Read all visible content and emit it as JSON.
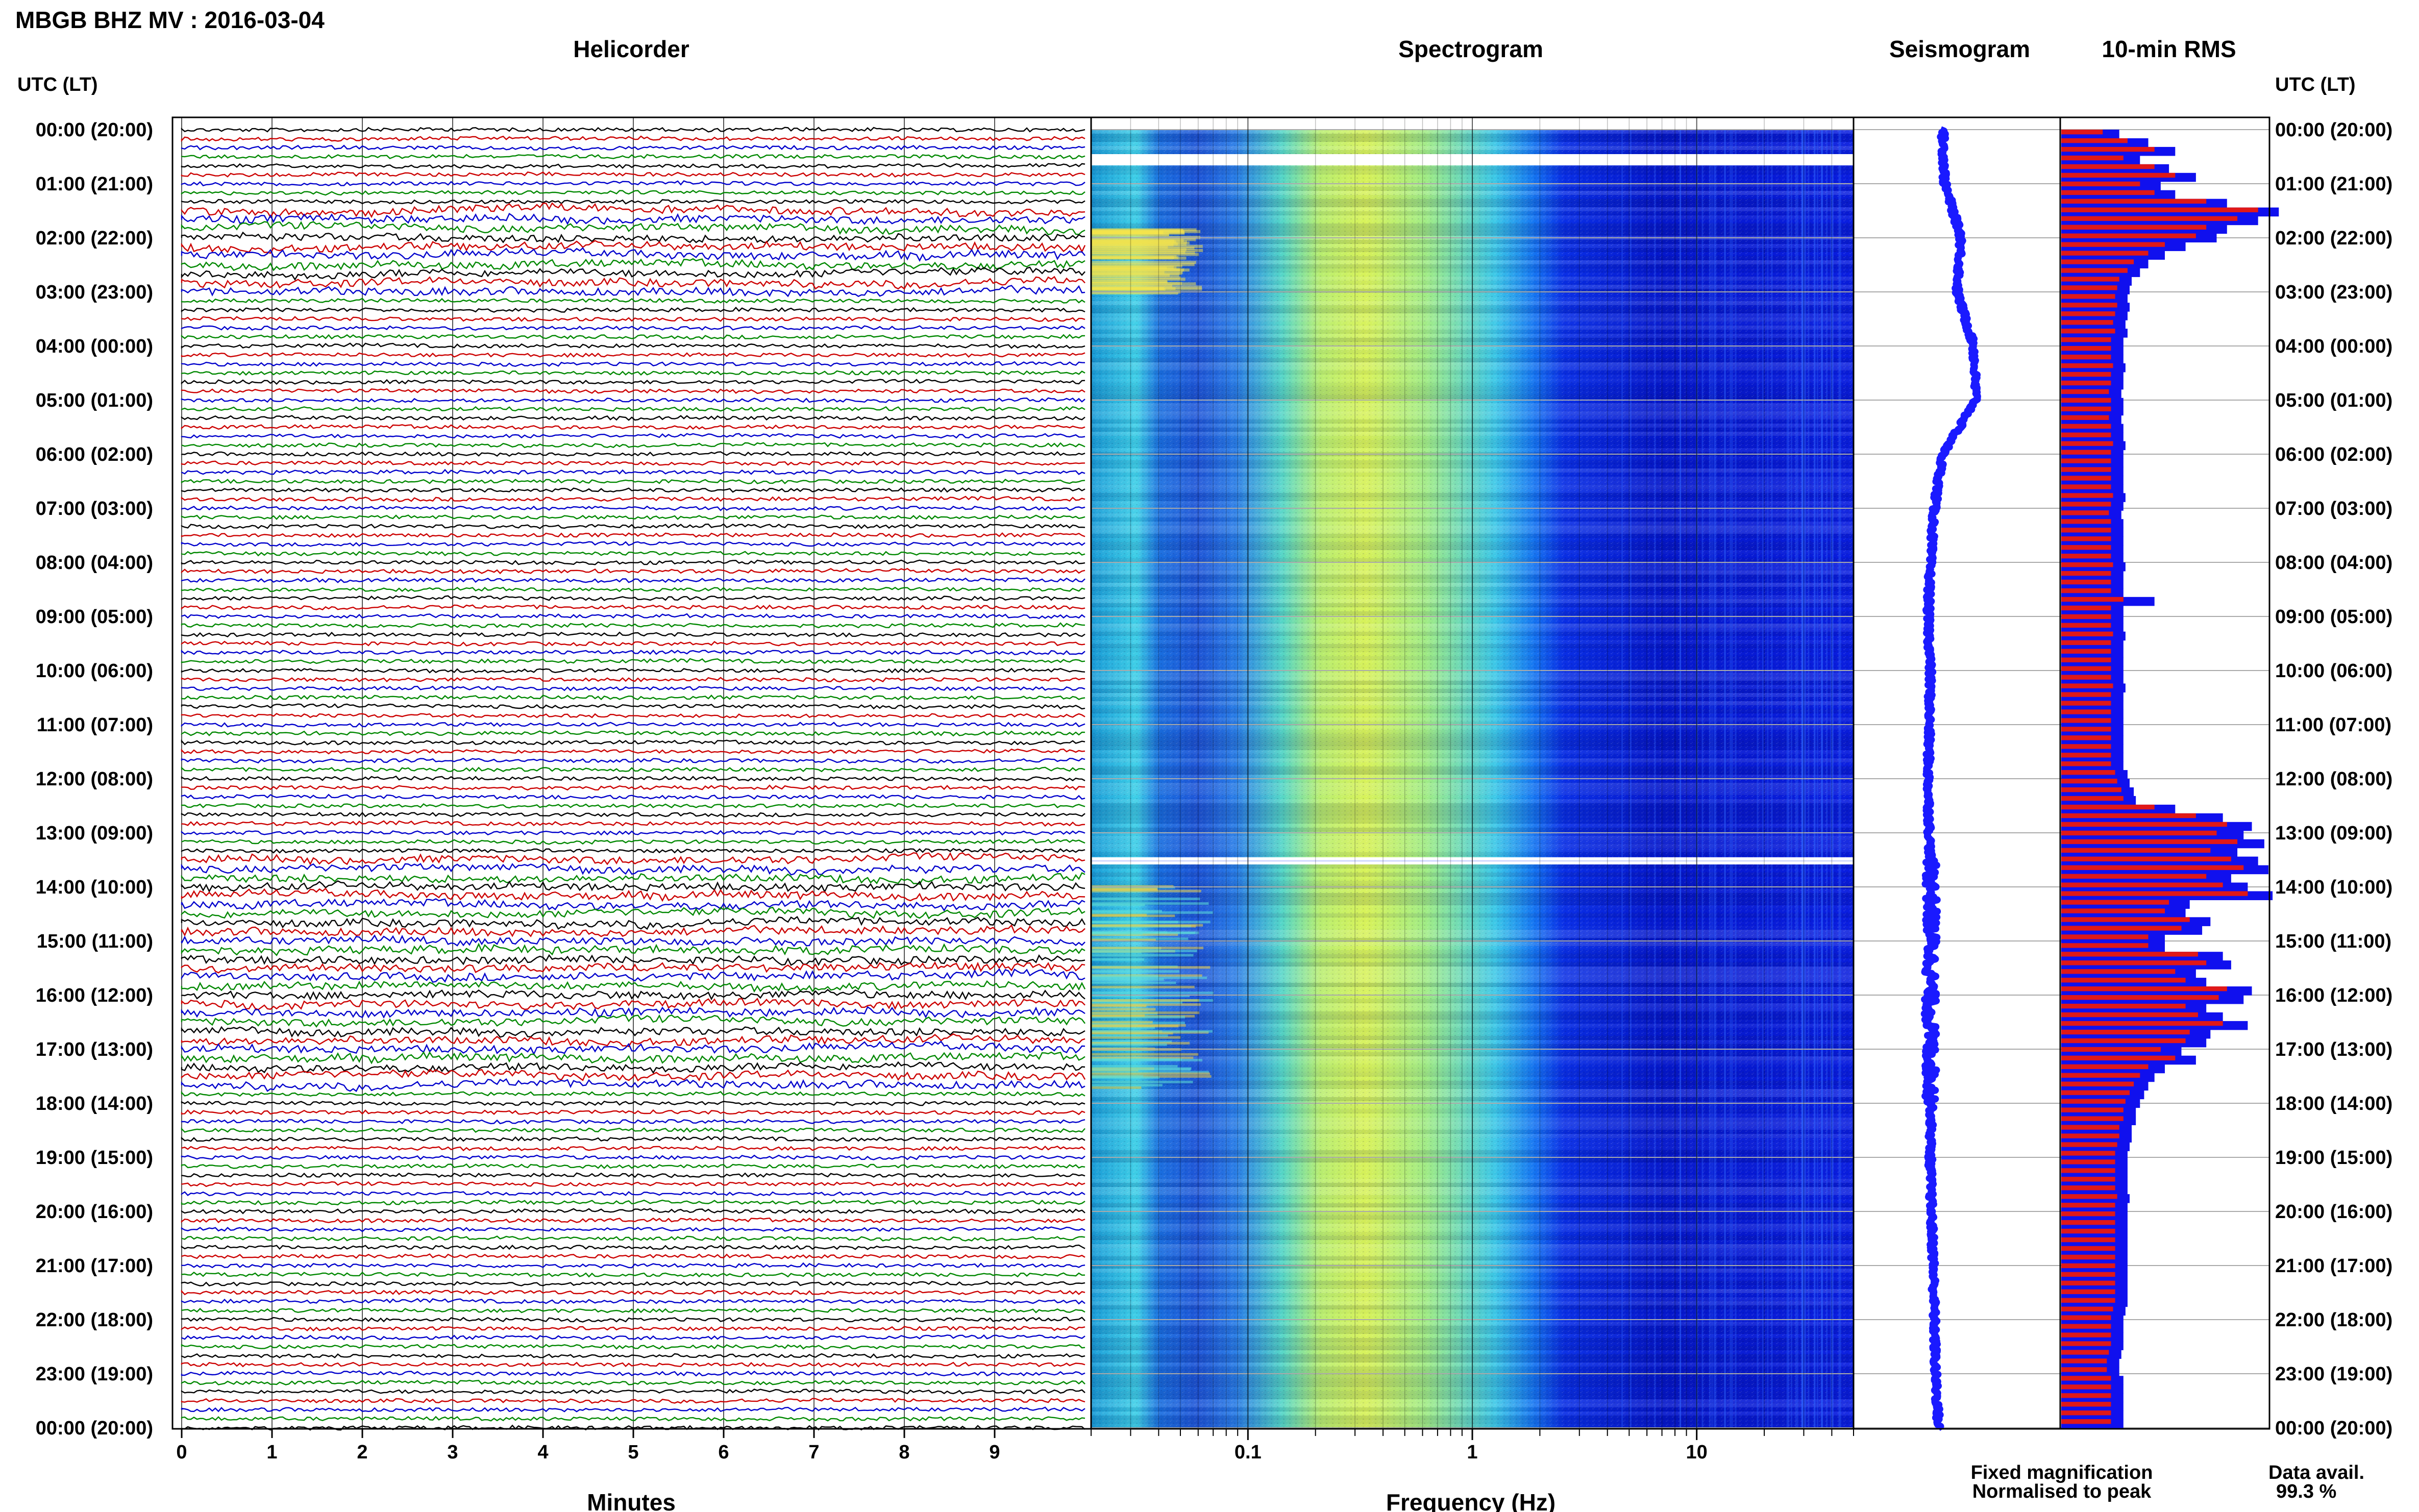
{
  "header": {
    "title": "MBGB BHZ MV : 2016-03-04",
    "utc_label_left": "UTC (LT)",
    "utc_label_right": "UTC (LT)"
  },
  "panels": {
    "helicorder": "Helicorder",
    "spectrogram": "Spectrogram",
    "seismogram": "Seismogram",
    "rms": "10-min RMS"
  },
  "legend": {
    "fixed": "Fixed magnification",
    "normalised": "Normalised to peak",
    "fixed_color": "#1010ee",
    "normalised_color": "#e01818"
  },
  "availability": {
    "label": "Data avail.",
    "value": "99.3 %"
  },
  "chart_data": {
    "type": "heatmap",
    "time_labels": [
      "00:00 (20:00)",
      "01:00 (21:00)",
      "02:00 (22:00)",
      "03:00 (23:00)",
      "04:00 (00:00)",
      "05:00 (01:00)",
      "06:00 (02:00)",
      "07:00 (03:00)",
      "08:00 (04:00)",
      "09:00 (05:00)",
      "10:00 (06:00)",
      "11:00 (07:00)",
      "12:00 (08:00)",
      "13:00 (09:00)",
      "14:00 (10:00)",
      "15:00 (11:00)",
      "16:00 (12:00)",
      "17:00 (13:00)",
      "18:00 (14:00)",
      "19:00 (15:00)",
      "20:00 (16:00)",
      "21:00 (17:00)",
      "22:00 (18:00)",
      "23:00 (19:00)",
      "00:00 (20:00)"
    ],
    "helicorder": {
      "xlabel": "Minutes",
      "xticks": [
        0,
        1,
        2,
        3,
        4,
        5,
        6,
        7,
        8,
        9
      ],
      "xlim": [
        0,
        10
      ],
      "rows_per_hour": 6,
      "trace_colors": [
        "#000000",
        "#cc0000",
        "#0000cc",
        "#008800"
      ]
    },
    "spectrogram": {
      "xlabel": "Frequency (Hz)",
      "xscale": "log",
      "xticks": [
        "0.1",
        "1",
        "10"
      ],
      "xlim": [
        0.02,
        50
      ],
      "colormap": [
        "#00008f",
        "#0000ff",
        "#0080ff",
        "#00ffff",
        "#80ff80",
        "#ffff00",
        "#ff8000"
      ],
      "peak_band_hz": [
        0.2,
        0.6
      ]
    },
    "seismogram": {
      "color": "#1a1aff",
      "xrange": [
        -1,
        1
      ],
      "envelope": [
        0.06,
        0.08,
        0.24,
        0.2,
        0.36,
        0.38,
        0.06,
        -0.02,
        -0.06,
        -0.08,
        -0.06,
        -0.07,
        -0.08,
        -0.07,
        -0.05,
        -0.05,
        -0.06,
        -0.06,
        -0.05,
        -0.06,
        -0.05,
        -0.03,
        -0.02,
        -0.01,
        0.02
      ]
    },
    "rms": {
      "series": [
        {
          "name": "Fixed magnification",
          "color": "#1010ee",
          "values": [
            0.28,
            0.42,
            0.55,
            0.38,
            0.52,
            0.65,
            0.48,
            0.55,
            0.8,
            1.05,
            0.95,
            0.8,
            0.75,
            0.6,
            0.5,
            0.42,
            0.38,
            0.34,
            0.33,
            0.32,
            0.33,
            0.32,
            0.31,
            0.32,
            0.3,
            0.3,
            0.3,
            0.31,
            0.3,
            0.3,
            0.29,
            0.3,
            0.3,
            0.29,
            0.3,
            0.3,
            0.31,
            0.3,
            0.3,
            0.3,
            0.3,
            0.3,
            0.31,
            0.3,
            0.29,
            0.3,
            0.3,
            0.3,
            0.3,
            0.3,
            0.31,
            0.3,
            0.3,
            0.3,
            0.45,
            0.3,
            0.3,
            0.3,
            0.31,
            0.3,
            0.3,
            0.3,
            0.3,
            0.3,
            0.31,
            0.3,
            0.3,
            0.3,
            0.3,
            0.3,
            0.3,
            0.3,
            0.3,
            0.3,
            0.32,
            0.33,
            0.35,
            0.36,
            0.55,
            0.78,
            0.92,
            0.88,
            0.98,
            0.85,
            0.95,
            1.0,
            0.82,
            0.9,
            1.02,
            0.62,
            0.6,
            0.72,
            0.68,
            0.5,
            0.5,
            0.78,
            0.82,
            0.65,
            0.7,
            0.92,
            0.88,
            0.7,
            0.78,
            0.9,
            0.72,
            0.7,
            0.58,
            0.65,
            0.5,
            0.45,
            0.42,
            0.4,
            0.38,
            0.36,
            0.36,
            0.34,
            0.34,
            0.33,
            0.32,
            0.32,
            0.32,
            0.32,
            0.32,
            0.33,
            0.32,
            0.32,
            0.32,
            0.32,
            0.32,
            0.32,
            0.32,
            0.32,
            0.32,
            0.32,
            0.32,
            0.32,
            0.31,
            0.3,
            0.3,
            0.3,
            0.3,
            0.29,
            0.28,
            0.28,
            0.3,
            0.3,
            0.3,
            0.3,
            0.3,
            0.3
          ]
        },
        {
          "name": "Normalised to peak",
          "color": "#e01818",
          "values": [
            0.2,
            0.32,
            0.45,
            0.3,
            0.45,
            0.55,
            0.38,
            0.45,
            0.7,
            0.95,
            0.85,
            0.7,
            0.65,
            0.5,
            0.42,
            0.35,
            0.32,
            0.28,
            0.27,
            0.26,
            0.27,
            0.26,
            0.25,
            0.26,
            0.24,
            0.24,
            0.24,
            0.25,
            0.24,
            0.24,
            0.23,
            0.24,
            0.24,
            0.23,
            0.24,
            0.24,
            0.25,
            0.24,
            0.24,
            0.24,
            0.24,
            0.24,
            0.25,
            0.24,
            0.23,
            0.24,
            0.24,
            0.24,
            0.24,
            0.24,
            0.25,
            0.24,
            0.24,
            0.24,
            0.3,
            0.24,
            0.24,
            0.24,
            0.25,
            0.24,
            0.24,
            0.24,
            0.24,
            0.24,
            0.25,
            0.24,
            0.24,
            0.24,
            0.24,
            0.24,
            0.24,
            0.24,
            0.24,
            0.24,
            0.26,
            0.27,
            0.29,
            0.3,
            0.45,
            0.65,
            0.8,
            0.75,
            0.85,
            0.72,
            0.82,
            0.88,
            0.7,
            0.78,
            0.9,
            0.52,
            0.5,
            0.62,
            0.58,
            0.42,
            0.42,
            0.66,
            0.7,
            0.55,
            0.6,
            0.8,
            0.76,
            0.6,
            0.66,
            0.78,
            0.62,
            0.6,
            0.48,
            0.55,
            0.42,
            0.38,
            0.35,
            0.33,
            0.31,
            0.3,
            0.3,
            0.28,
            0.28,
            0.27,
            0.26,
            0.26,
            0.26,
            0.26,
            0.26,
            0.27,
            0.26,
            0.26,
            0.26,
            0.26,
            0.26,
            0.26,
            0.26,
            0.26,
            0.26,
            0.26,
            0.26,
            0.26,
            0.25,
            0.24,
            0.24,
            0.24,
            0.24,
            0.23,
            0.22,
            0.22,
            0.24,
            0.24,
            0.24,
            0.24,
            0.24,
            0.24
          ]
        }
      ]
    }
  }
}
